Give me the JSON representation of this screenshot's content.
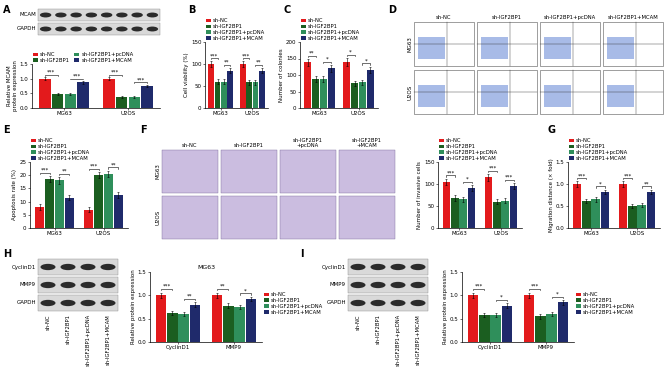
{
  "panel_letters": [
    "A",
    "B",
    "C",
    "D",
    "E",
    "F",
    "G",
    "H",
    "I"
  ],
  "chart_data": [
    {
      "panel": "A",
      "type": "bar",
      "y_label": "Relative MCAM protein expression",
      "categories": [
        "MG63",
        "U2OS"
      ],
      "series": [
        {
          "name": "sh-NC",
          "color": "#e31a1c",
          "values": [
            1.0,
            1.0
          ],
          "errors": [
            0.06,
            0.06
          ]
        },
        {
          "name": "sh-IGF2BP1",
          "color": "#1b5e20",
          "values": [
            0.48,
            0.38
          ],
          "errors": [
            0.04,
            0.04
          ]
        },
        {
          "name": "sh-IGF2BP1+pcDNA",
          "color": "#2f8f5b",
          "values": [
            0.48,
            0.38
          ],
          "errors": [
            0.04,
            0.04
          ]
        },
        {
          "name": "sh-IGF2BP1+MCAM",
          "color": "#1f2a6b",
          "values": [
            0.88,
            0.75
          ],
          "errors": [
            0.05,
            0.05
          ]
        }
      ],
      "ylim": [
        0,
        1.5
      ],
      "yticks": [
        {
          "value": 0,
          "label": "0.0"
        },
        {
          "value": 0.5,
          "label": "0.5"
        },
        {
          "value": 1.0,
          "label": "1.0"
        },
        {
          "value": 1.5,
          "label": "1.5"
        }
      ],
      "legend": "top",
      "annotations": [
        {
          "category": "MG63",
          "from": "sh-NC",
          "to": "sh-IGF2BP1",
          "text": "***"
        },
        {
          "category": "MG63",
          "from": "sh-IGF2BP1+pcDNA",
          "to": "sh-IGF2BP1+MCAM",
          "text": "***"
        },
        {
          "category": "U2OS",
          "from": "sh-NC",
          "to": "sh-IGF2BP1",
          "text": "***"
        },
        {
          "category": "U2OS",
          "from": "sh-IGF2BP1+pcDNA",
          "to": "sh-IGF2BP1+MCAM",
          "text": "***"
        }
      ]
    },
    {
      "panel": "B",
      "type": "bar",
      "y_label": "Cell viability (%)",
      "categories": [
        "MG63",
        "U2OS"
      ],
      "series": [
        {
          "name": "sh-NC",
          "color": "#e31a1c",
          "values": [
            100,
            100
          ],
          "errors": [
            6,
            6
          ]
        },
        {
          "name": "sh-IGF2BP1",
          "color": "#1b5e20",
          "values": [
            60,
            58
          ],
          "errors": [
            5,
            5
          ]
        },
        {
          "name": "sh-IGF2BP1+pcDNA",
          "color": "#2f8f5b",
          "values": [
            60,
            58
          ],
          "errors": [
            5,
            5
          ]
        },
        {
          "name": "sh-IGF2BP1+MCAM",
          "color": "#1f2a6b",
          "values": [
            85,
            85
          ],
          "errors": [
            6,
            6
          ]
        }
      ],
      "ylim": [
        0,
        150
      ],
      "yticks": [
        0,
        50,
        100,
        150
      ],
      "legend": "top",
      "annotations": [
        {
          "category": "MG63",
          "from": "sh-NC",
          "to": "sh-IGF2BP1",
          "text": "***"
        },
        {
          "category": "MG63",
          "from": "sh-IGF2BP1+pcDNA",
          "to": "sh-IGF2BP1+MCAM",
          "text": "**"
        },
        {
          "category": "U2OS",
          "from": "sh-NC",
          "to": "sh-IGF2BP1",
          "text": "***"
        },
        {
          "category": "U2OS",
          "from": "sh-IGF2BP1+pcDNA",
          "to": "sh-IGF2BP1+MCAM",
          "text": "**"
        }
      ]
    },
    {
      "panel": "C",
      "type": "bar",
      "y_label": "Number of colonies",
      "categories": [
        "MG63",
        "U2OS"
      ],
      "series": [
        {
          "name": "sh-NC",
          "color": "#e31a1c",
          "values": [
            138,
            140
          ],
          "errors": [
            10,
            12
          ]
        },
        {
          "name": "sh-IGF2BP1",
          "color": "#1b5e20",
          "values": [
            88,
            75
          ],
          "errors": [
            8,
            8
          ]
        },
        {
          "name": "sh-IGF2BP1+pcDNA",
          "color": "#2f8f5b",
          "values": [
            88,
            78
          ],
          "errors": [
            8,
            8
          ]
        },
        {
          "name": "sh-IGF2BP1+MCAM",
          "color": "#1f2a6b",
          "values": [
            120,
            115
          ],
          "errors": [
            10,
            10
          ]
        }
      ],
      "ylim": [
        0,
        200
      ],
      "yticks": [
        0,
        50,
        100,
        150,
        200
      ],
      "legend": "top",
      "annotations": [
        {
          "category": "MG63",
          "from": "sh-NC",
          "to": "sh-IGF2BP1",
          "text": "**"
        },
        {
          "category": "MG63",
          "from": "sh-IGF2BP1+pcDNA",
          "to": "sh-IGF2BP1+MCAM",
          "text": "*"
        },
        {
          "category": "U2OS",
          "from": "sh-NC",
          "to": "sh-IGF2BP1",
          "text": "*"
        },
        {
          "category": "U2OS",
          "from": "sh-IGF2BP1+pcDNA",
          "to": "sh-IGF2BP1+MCAM",
          "text": "*"
        }
      ]
    },
    {
      "panel": "E",
      "type": "bar",
      "y_label": "Apoptosis rate (%)",
      "categories": [
        "MG63",
        "U2OS"
      ],
      "series": [
        {
          "name": "sh-NC",
          "color": "#e31a1c",
          "values": [
            8,
            7
          ],
          "errors": [
            1,
            1
          ]
        },
        {
          "name": "sh-IGF2BP1",
          "color": "#1b5e20",
          "values": [
            18.5,
            20
          ],
          "errors": [
            1.2,
            1.2
          ]
        },
        {
          "name": "sh-IGF2BP1+pcDNA",
          "color": "#2f8f5b",
          "values": [
            18,
            20.5
          ],
          "errors": [
            1.2,
            1.2
          ]
        },
        {
          "name": "sh-IGF2BP1+MCAM",
          "color": "#1f2a6b",
          "values": [
            11.5,
            12.5
          ],
          "errors": [
            1,
            1
          ]
        }
      ],
      "ylim": [
        0,
        25
      ],
      "yticks": [
        0,
        5,
        10,
        15,
        20,
        25
      ],
      "legend": "top",
      "annotations": [
        {
          "category": "MG63",
          "from": "sh-NC",
          "to": "sh-IGF2BP1",
          "text": "***"
        },
        {
          "category": "MG63",
          "from": "sh-IGF2BP1+pcDNA",
          "to": "sh-IGF2BP1+MCAM",
          "text": "**"
        },
        {
          "category": "U2OS",
          "from": "sh-NC",
          "to": "sh-IGF2BP1",
          "text": "***"
        },
        {
          "category": "U2OS",
          "from": "sh-IGF2BP1+pcDNA",
          "to": "sh-IGF2BP1+MCAM",
          "text": "**"
        }
      ]
    },
    {
      "panel": "F",
      "type": "bar",
      "y_label": "Number of invasive cells",
      "categories": [
        "MG63",
        "U2OS"
      ],
      "series": [
        {
          "name": "sh-NC",
          "color": "#e31a1c",
          "values": [
            105,
            115
          ],
          "errors": [
            7,
            8
          ]
        },
        {
          "name": "sh-IGF2BP1",
          "color": "#1b5e20",
          "values": [
            68,
            60
          ],
          "errors": [
            6,
            6
          ]
        },
        {
          "name": "sh-IGF2BP1+pcDNA",
          "color": "#2f8f5b",
          "values": [
            65,
            62
          ],
          "errors": [
            6,
            6
          ]
        },
        {
          "name": "sh-IGF2BP1+MCAM",
          "color": "#1f2a6b",
          "values": [
            90,
            95
          ],
          "errors": [
            7,
            7
          ]
        }
      ],
      "ylim": [
        0,
        150
      ],
      "yticks": [
        0,
        50,
        100,
        150
      ],
      "legend": "top",
      "annotations": [
        {
          "category": "MG63",
          "from": "sh-NC",
          "to": "sh-IGF2BP1",
          "text": "***"
        },
        {
          "category": "MG63",
          "from": "sh-IGF2BP1+pcDNA",
          "to": "sh-IGF2BP1+MCAM",
          "text": "*"
        },
        {
          "category": "U2OS",
          "from": "sh-NC",
          "to": "sh-IGF2BP1",
          "text": "***"
        },
        {
          "category": "U2OS",
          "from": "sh-IGF2BP1+pcDNA",
          "to": "sh-IGF2BP1+MCAM",
          "text": "***"
        }
      ]
    },
    {
      "panel": "G",
      "type": "bar",
      "y_label": "Migration distance (× fold)",
      "categories": [
        "MG63",
        "U2OS"
      ],
      "series": [
        {
          "name": "sh-NC",
          "color": "#e31a1c",
          "values": [
            1.0,
            1.0
          ],
          "errors": [
            0.06,
            0.06
          ]
        },
        {
          "name": "sh-IGF2BP1",
          "color": "#1b5e20",
          "values": [
            0.62,
            0.5
          ],
          "errors": [
            0.05,
            0.05
          ]
        },
        {
          "name": "sh-IGF2BP1+pcDNA",
          "color": "#2f8f5b",
          "values": [
            0.65,
            0.52
          ],
          "errors": [
            0.05,
            0.05
          ]
        },
        {
          "name": "sh-IGF2BP1+MCAM",
          "color": "#1f2a6b",
          "values": [
            0.82,
            0.82
          ],
          "errors": [
            0.05,
            0.05
          ]
        }
      ],
      "ylim": [
        0,
        1.5
      ],
      "yticks": [
        {
          "value": 0,
          "label": "0.0"
        },
        {
          "value": 0.5,
          "label": "0.5"
        },
        {
          "value": 1.0,
          "label": "1.0"
        },
        {
          "value": 1.5,
          "label": "1.5"
        }
      ],
      "legend": "top",
      "annotations": [
        {
          "category": "MG63",
          "from": "sh-NC",
          "to": "sh-IGF2BP1",
          "text": "***"
        },
        {
          "category": "MG63",
          "from": "sh-IGF2BP1+pcDNA",
          "to": "sh-IGF2BP1+MCAM",
          "text": "*"
        },
        {
          "category": "U2OS",
          "from": "sh-NC",
          "to": "sh-IGF2BP1",
          "text": "***"
        },
        {
          "category": "U2OS",
          "from": "sh-IGF2BP1+pcDNA",
          "to": "sh-IGF2BP1+MCAM",
          "text": "**"
        }
      ]
    },
    {
      "panel": "H",
      "type": "bar",
      "title": "MG63",
      "y_label": "Relative protein expression",
      "categories": [
        "CyclinD1",
        "MMP9"
      ],
      "series": [
        {
          "name": "sh-NC",
          "color": "#e31a1c",
          "values": [
            1.0,
            1.0
          ],
          "errors": [
            0.06,
            0.06
          ]
        },
        {
          "name": "sh-IGF2BP1",
          "color": "#1b5e20",
          "values": [
            0.62,
            0.78
          ],
          "errors": [
            0.05,
            0.05
          ]
        },
        {
          "name": "sh-IGF2BP1+pcDNA",
          "color": "#2f8f5b",
          "values": [
            0.6,
            0.75
          ],
          "errors": [
            0.05,
            0.05
          ]
        },
        {
          "name": "sh-IGF2BP1+MCAM",
          "color": "#1f2a6b",
          "values": [
            0.8,
            0.92
          ],
          "errors": [
            0.05,
            0.05
          ]
        }
      ],
      "ylim": [
        0,
        1.5
      ],
      "yticks": [
        {
          "value": 0,
          "label": "0.0"
        },
        {
          "value": 0.5,
          "label": "0.5"
        },
        {
          "value": 1.0,
          "label": "1.0"
        },
        {
          "value": 1.5,
          "label": "1.5"
        }
      ],
      "legend": "right",
      "annotations": [
        {
          "category": "CyclinD1",
          "from": "sh-NC",
          "to": "sh-IGF2BP1",
          "text": "***"
        },
        {
          "category": "CyclinD1",
          "from": "sh-IGF2BP1+pcDNA",
          "to": "sh-IGF2BP1+MCAM",
          "text": "**"
        },
        {
          "category": "MMP9",
          "from": "sh-NC",
          "to": "sh-IGF2BP1",
          "text": "**"
        },
        {
          "category": "MMP9",
          "from": "sh-IGF2BP1+pcDNA",
          "to": "sh-IGF2BP1+MCAM",
          "text": "*"
        }
      ]
    },
    {
      "panel": "I",
      "type": "bar",
      "y_label": "Relative protein expression",
      "categories": [
        "CyclinD1",
        "MMP9"
      ],
      "series": [
        {
          "name": "sh-NC",
          "color": "#e31a1c",
          "values": [
            1.0,
            1.0
          ],
          "errors": [
            0.06,
            0.06
          ]
        },
        {
          "name": "sh-IGF2BP1",
          "color": "#1b5e20",
          "values": [
            0.58,
            0.55
          ],
          "errors": [
            0.05,
            0.05
          ]
        },
        {
          "name": "sh-IGF2BP1+pcDNA",
          "color": "#2f8f5b",
          "values": [
            0.58,
            0.6
          ],
          "errors": [
            0.05,
            0.05
          ]
        },
        {
          "name": "sh-IGF2BP1+MCAM",
          "color": "#1f2a6b",
          "values": [
            0.78,
            0.85
          ],
          "errors": [
            0.05,
            0.05
          ]
        }
      ],
      "ylim": [
        0,
        1.5
      ],
      "yticks": [
        {
          "value": 0,
          "label": "0.0"
        },
        {
          "value": 0.5,
          "label": "0.5"
        },
        {
          "value": 1.0,
          "label": "1.0"
        },
        {
          "value": 1.5,
          "label": "1.5"
        }
      ],
      "legend": "right",
      "annotations": [
        {
          "category": "CyclinD1",
          "from": "sh-NC",
          "to": "sh-IGF2BP1",
          "text": "***"
        },
        {
          "category": "CyclinD1",
          "from": "sh-IGF2BP1+pcDNA",
          "to": "sh-IGF2BP1+MCAM",
          "text": "*"
        },
        {
          "category": "MMP9",
          "from": "sh-NC",
          "to": "sh-IGF2BP1",
          "text": "***"
        },
        {
          "category": "MMP9",
          "from": "sh-IGF2BP1+pcDNA",
          "to": "sh-IGF2BP1+MCAM",
          "text": "*"
        }
      ]
    }
  ],
  "blots": [
    {
      "panel": "A",
      "proteins": [
        "MCAM",
        "GAPDH"
      ],
      "lanes": null
    },
    {
      "panel": "H",
      "proteins": [
        "CyclinD1",
        "MMP9",
        "GAPDH"
      ],
      "lanes": [
        "sh-NC",
        "sh-IGF2BP1",
        "sh-IGF2BP1+pcDNA",
        "sh-IGF2BP1+MCAM"
      ]
    },
    {
      "panel": "I",
      "proteins": [
        "CyclinD1",
        "MMP9",
        "GAPDH"
      ],
      "lanes": [
        "sh-NC",
        "sh-IGF2BP1",
        "sh-IGF2BP1+pcDNA",
        "sh-IGF2BP1+MCAM"
      ]
    }
  ],
  "flow_cytometry": {
    "panel": "D",
    "columns": [
      "sh-NC",
      "sh-IGF2BP1",
      "sh-IGF2BP1+pcDNA",
      "sh-IGF2BP1+MCAM"
    ],
    "rows": [
      "MG63",
      "U2OS"
    ]
  },
  "invasion_images": {
    "panel": "F",
    "columns": [
      "sh-NC",
      "sh-IGF2BP1",
      "sh-IGF2BP1+pcDNA",
      "sh-IGF2BP1+MCAM"
    ],
    "rows": [
      "MG63",
      "U2OS"
    ]
  }
}
